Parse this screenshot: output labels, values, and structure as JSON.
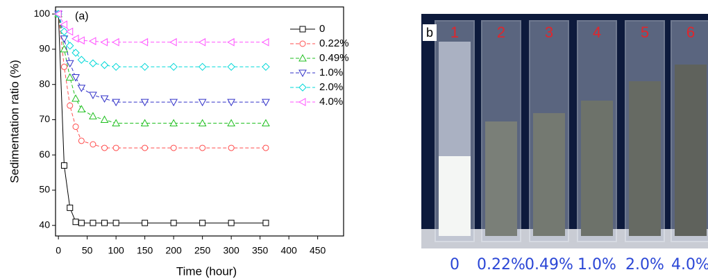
{
  "chart_data": {
    "type": "line",
    "annotation": "(a)",
    "x_label": "Time (hour)",
    "y_label": "Sedimentation ratio (%)",
    "x": [
      0,
      10,
      20,
      30,
      40,
      60,
      80,
      100,
      150,
      200,
      250,
      300,
      360
    ],
    "series": [
      {
        "name": "0",
        "color": "#000000",
        "marker": "square",
        "dashed": false,
        "values": [
          100,
          57,
          45,
          41,
          40.7,
          40.7,
          40.7,
          40.7,
          40.7,
          40.7,
          40.7,
          40.7,
          40.7
        ]
      },
      {
        "name": "0.22%",
        "color": "#ff4d4d",
        "marker": "circle",
        "dashed": true,
        "values": [
          100,
          85,
          74,
          68,
          64,
          63,
          62,
          62,
          62,
          62,
          62,
          62,
          62
        ]
      },
      {
        "name": "0.49%",
        "color": "#1fbf1f",
        "marker": "triangle-up",
        "dashed": true,
        "values": [
          100,
          90,
          82,
          76,
          73,
          71,
          70,
          69,
          69,
          69,
          69,
          69,
          69
        ]
      },
      {
        "name": "1.0%",
        "color": "#3030c8",
        "marker": "triangle-down",
        "dashed": true,
        "values": [
          100,
          93,
          86,
          82,
          79,
          77,
          76,
          75,
          75,
          75,
          75,
          75,
          75
        ]
      },
      {
        "name": "2.0%",
        "color": "#00d8d8",
        "marker": "diamond",
        "dashed": true,
        "values": [
          100,
          95,
          91,
          89,
          87,
          86,
          85.5,
          85,
          85,
          85,
          85,
          85,
          85
        ]
      },
      {
        "name": "4.0%",
        "color": "#ff50ff",
        "marker": "triangle-left",
        "dashed": true,
        "values": [
          100,
          97,
          95,
          93,
          92.5,
          92.3,
          92,
          92,
          92,
          92,
          92,
          92,
          92
        ]
      }
    ],
    "xlim": [
      -5,
      495
    ],
    "xticks": [
      0,
      50,
      100,
      150,
      200,
      250,
      300,
      350,
      400,
      450
    ],
    "ylim": [
      37,
      102
    ],
    "yticks": [
      40,
      50,
      60,
      70,
      80,
      90,
      100
    ],
    "grid": false
  },
  "photo": {
    "label": "b",
    "vials": [
      {
        "number": "1",
        "caption": "0"
      },
      {
        "number": "2",
        "caption": "0.22%"
      },
      {
        "number": "3",
        "caption": "0.49%"
      },
      {
        "number": "4",
        "caption": "1.0%"
      },
      {
        "number": "5",
        "caption": "2.0%"
      },
      {
        "number": "6",
        "caption": "4.0%"
      }
    ]
  }
}
